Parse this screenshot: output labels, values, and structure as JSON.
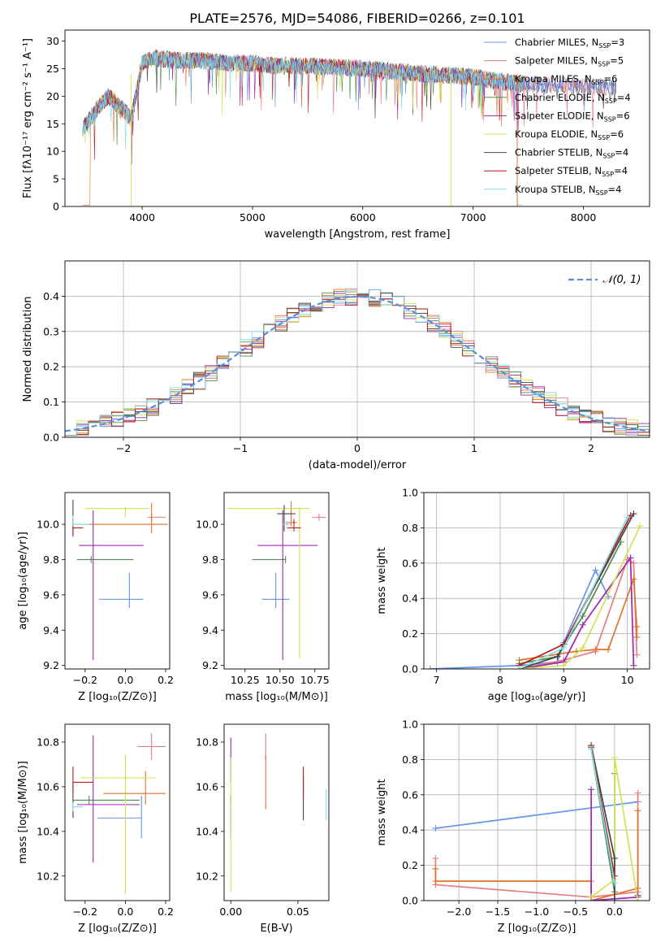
{
  "figure": {
    "title": "PLATE=2576, MJD=54086, FIBERID=0266, z=0.101"
  },
  "models": [
    {
      "label": "Chabrier MILES, N",
      "sub": "SSP",
      "tail": "=3",
      "color": "#6495ed"
    },
    {
      "label": "Salpeter MILES, N",
      "sub": "SSP",
      "tail": "=5",
      "color": "#e97c80"
    },
    {
      "label": "Kroupa MILES, N",
      "sub": "SSP",
      "tail": "=6",
      "color": "#e07328"
    },
    {
      "label": "Chabrier ELODIE, N",
      "sub": "SSP",
      "tail": "=4",
      "color": "#4f8a4f"
    },
    {
      "label": "Salpeter ELODIE, N",
      "sub": "SSP",
      "tail": "=6",
      "color": "#9c27b0"
    },
    {
      "label": "Kroupa ELODIE, N",
      "sub": "SSP",
      "tail": "=6",
      "color": "#d4e157"
    },
    {
      "label": "Chabrier STELIB, N",
      "sub": "SSP",
      "tail": "=4",
      "color": "#444444"
    },
    {
      "label": "Salpeter STELIB, N",
      "sub": "SSP",
      "tail": "=4",
      "color": "#b71c1c"
    },
    {
      "label": "Kroupa STELIB, N",
      "sub": "SSP",
      "tail": "=4",
      "color": "#80deea"
    }
  ],
  "chart_data": [
    {
      "id": "spectrum",
      "type": "line",
      "xlabel": "wavelength [Angstrom, rest frame]",
      "ylabel": "Flux [fλ10⁻¹⁷ erg cm⁻² s⁻¹ A⁻¹]",
      "xlim": [
        3300,
        8600
      ],
      "ylim": [
        0,
        32
      ],
      "xticks": [
        4000,
        5000,
        6000,
        7000,
        8000
      ],
      "yticks": [
        0,
        5,
        10,
        15,
        20,
        25,
        30
      ],
      "spectrum_shape_x": [
        3450,
        3500,
        3600,
        3700,
        3800,
        3900,
        4000,
        4100,
        4300,
        4500,
        4800,
        5000,
        5200,
        5500,
        6000,
        6300,
        6600,
        7000,
        7300,
        7600,
        8000,
        8300
      ],
      "spectrum_shape_y": [
        14,
        15,
        18,
        20,
        18,
        16,
        26,
        27,
        26.5,
        26.5,
        26,
        26,
        25.5,
        25.5,
        25,
        24.5,
        24,
        23.5,
        22.5,
        22,
        22,
        21.5
      ],
      "legend": "upper-right"
    },
    {
      "id": "residuals",
      "type": "histogram",
      "xlabel": "(data-model)/error",
      "ylabel": "Normed distribution",
      "xlim": [
        -2.5,
        2.5
      ],
      "ylim": [
        0,
        0.5
      ],
      "xticks": [
        -2,
        -1,
        0,
        1,
        2
      ],
      "yticks": [
        0.0,
        0.1,
        0.2,
        0.3,
        0.4
      ],
      "gaussian_label": "𝒩(0, 1)",
      "gaussian_color": "#5b8fd6",
      "grid": true,
      "legend": "upper-right"
    },
    {
      "id": "age-vs-Z",
      "type": "errorbar",
      "xlabel": "Z [log₁₀(Z/Z⊙)]",
      "ylabel": "age  [log₁₀(age/yr)]",
      "xlim": [
        -0.3,
        0.22
      ],
      "ylim": [
        9.18,
        10.18
      ],
      "xticks": [
        -0.2,
        0.0,
        0.2
      ],
      "yticks": [
        9.2,
        9.4,
        9.6,
        9.8,
        10.0
      ],
      "points": [
        {
          "x": 0.02,
          "xerr": [
            0.15,
            0.07
          ],
          "y": 9.575,
          "yerr": [
            0.05,
            0.15
          ],
          "model": 0
        },
        {
          "x": 0.13,
          "xerr": [
            0.02,
            0.07
          ],
          "y": 10.04,
          "yerr": [
            0.02,
            0.02
          ],
          "model": 1
        },
        {
          "x": 0.13,
          "xerr": [
            0.38,
            0.08
          ],
          "y": 10.0,
          "yerr": [
            0.05,
            0.12
          ],
          "model": 2
        },
        {
          "x": -0.17,
          "xerr": [
            0.07,
            0.21
          ],
          "y": 9.8,
          "yerr": [
            0.02,
            0.02
          ],
          "model": 3
        },
        {
          "x": -0.16,
          "xerr": [
            0.07,
            0.25
          ],
          "y": 9.88,
          "yerr": [
            0.65,
            0.2
          ],
          "model": 4
        },
        {
          "x": 0.0,
          "xerr": [
            0.2,
            0.12
          ],
          "y": 10.09,
          "yerr": [
            0.05,
            0.01
          ],
          "model": 5
        },
        {
          "x": -0.26,
          "xerr": [
            0.0,
            0.0
          ],
          "y": 10.06,
          "yerr": [
            0.12,
            0.08
          ],
          "model": 6
        },
        {
          "x": -0.26,
          "xerr": [
            0.0,
            0.05
          ],
          "y": 9.98,
          "yerr": [
            0.05,
            0.05
          ],
          "model": 7
        },
        {
          "x": -0.26,
          "xerr": [
            0.0,
            0.08
          ],
          "y": 10.0,
          "yerr": [
            0.01,
            0.05
          ],
          "model": 8
        }
      ]
    },
    {
      "id": "age-vs-mass",
      "type": "errorbar",
      "xlabel": "mass [log₁₀(M/M⊙)]",
      "ylabel": "",
      "xlim": [
        10.1,
        10.85
      ],
      "ylim": [
        9.18,
        10.18
      ],
      "xticks": [
        10.25,
        10.5,
        10.75
      ],
      "yticks": [
        9.2,
        9.4,
        9.6,
        9.8,
        10.0
      ],
      "points": [
        {
          "x": 10.47,
          "xerr": [
            0.1,
            0.1
          ],
          "y": 9.575,
          "yerr": [
            0.05,
            0.15
          ],
          "model": 0
        },
        {
          "x": 10.78,
          "xerr": [
            0.05,
            0.05
          ],
          "y": 10.04,
          "yerr": [
            0.02,
            0.02
          ],
          "model": 1
        },
        {
          "x": 10.58,
          "xerr": [
            0.04,
            0.04
          ],
          "y": 10.01,
          "yerr": [
            0.02,
            0.12
          ],
          "model": 2
        },
        {
          "x": 10.54,
          "xerr": [
            0.24,
            0.0
          ],
          "y": 9.8,
          "yerr": [
            0.02,
            0.02
          ],
          "model": 3
        },
        {
          "x": 10.52,
          "xerr": [
            0.18,
            0.25
          ],
          "y": 9.88,
          "yerr": [
            0.65,
            0.2
          ],
          "model": 4
        },
        {
          "x": 10.64,
          "xerr": [
            0.52,
            0.07
          ],
          "y": 10.09,
          "yerr": [
            0.85,
            0.01
          ],
          "model": 5
        },
        {
          "x": 10.53,
          "xerr": [
            0.05,
            0.08
          ],
          "y": 10.06,
          "yerr": [
            0.1,
            0.05
          ],
          "model": 6
        },
        {
          "x": 10.6,
          "xerr": [
            0.05,
            0.05
          ],
          "y": 9.98,
          "yerr": [
            0.02,
            0.05
          ],
          "model": 7
        },
        {
          "x": 10.55,
          "xerr": [
            0.03,
            0.03
          ],
          "y": 10.0,
          "yerr": [
            0.01,
            0.02
          ],
          "model": 8
        }
      ]
    },
    {
      "id": "weight-vs-age",
      "type": "line",
      "xlabel": "age  [log₁₀(age/yr)]",
      "ylabel": "mass weight",
      "xlim": [
        6.8,
        10.35
      ],
      "ylim": [
        0.0,
        1.0
      ],
      "xticks": [
        7,
        8,
        9,
        10
      ],
      "yticks": [
        0.0,
        0.2,
        0.4,
        0.6,
        0.8,
        1.0
      ],
      "grid": true,
      "series": [
        {
          "model": 0,
          "x": [
            6.9,
            8.3,
            8.9,
            9.0,
            9.5,
            9.7
          ],
          "y": [
            0.0,
            0.02,
            0.04,
            0.15,
            0.56,
            0.41
          ]
        },
        {
          "model": 1,
          "x": [
            8.3,
            9.0,
            9.5,
            10.0,
            10.1,
            10.15
          ],
          "y": [
            0.0,
            0.05,
            0.1,
            0.62,
            0.6,
            0.08
          ]
        },
        {
          "model": 2,
          "x": [
            8.3,
            9.2,
            9.5,
            9.7,
            10.1,
            10.15,
            10.15
          ],
          "y": [
            0.05,
            0.1,
            0.11,
            0.11,
            0.51,
            0.24,
            0.18
          ]
        },
        {
          "model": 3,
          "x": [
            8.3,
            8.9,
            9.3,
            9.9
          ],
          "y": [
            0.03,
            0.07,
            0.3,
            0.72
          ]
        },
        {
          "model": 4,
          "x": [
            8.3,
            9.0,
            9.3,
            10.05,
            10.1
          ],
          "y": [
            0.0,
            0.04,
            0.25,
            0.63,
            0.02
          ]
        },
        {
          "model": 5,
          "x": [
            8.3,
            9.0,
            9.3,
            10.2
          ],
          "y": [
            0.0,
            0.02,
            0.12,
            0.81
          ]
        },
        {
          "model": 6,
          "x": [
            8.3,
            8.9,
            9.0,
            10.1
          ],
          "y": [
            0.0,
            0.07,
            0.14,
            0.88
          ]
        },
        {
          "model": 7,
          "x": [
            8.3,
            9.0,
            10.05
          ],
          "y": [
            0.02,
            0.14,
            0.87
          ]
        },
        {
          "model": 8,
          "x": [
            8.3,
            9.0,
            10.0
          ],
          "y": [
            0.0,
            0.12,
            0.86
          ]
        }
      ]
    },
    {
      "id": "mass-vs-Z",
      "type": "errorbar",
      "xlabel": "Z [log₁₀(Z/Z⊙)]",
      "ylabel": "mass [log₁₀(M/M⊙)]",
      "xlim": [
        -0.3,
        0.22
      ],
      "ylim": [
        10.09,
        10.88
      ],
      "xticks": [
        -0.2,
        0.0,
        0.2
      ],
      "yticks": [
        10.2,
        10.4,
        10.6,
        10.8
      ],
      "points": [
        {
          "x": 0.08,
          "xerr": [
            0.22,
            0.0
          ],
          "y": 10.46,
          "yerr": [
            0.09,
            0.1
          ],
          "model": 0
        },
        {
          "x": 0.13,
          "xerr": [
            0.07,
            0.07
          ],
          "y": 10.78,
          "yerr": [
            0.06,
            0.06
          ],
          "model": 1
        },
        {
          "x": 0.1,
          "xerr": [
            0.21,
            0.1
          ],
          "y": 10.57,
          "yerr": [
            0.05,
            0.1
          ],
          "model": 2
        },
        {
          "x": -0.18,
          "xerr": [
            0.08,
            0.25
          ],
          "y": 10.54,
          "yerr": [
            0.02,
            0.02
          ],
          "model": 3
        },
        {
          "x": -0.16,
          "xerr": [
            0.08,
            0.23
          ],
          "y": 10.52,
          "yerr": [
            0.26,
            0.31
          ],
          "model": 4
        },
        {
          "x": 0.0,
          "xerr": [
            0.22,
            0.15
          ],
          "y": 10.64,
          "yerr": [
            0.52,
            0.1
          ],
          "model": 5
        },
        {
          "x": -0.26,
          "xerr": [
            0.0,
            0.0
          ],
          "y": 10.54,
          "yerr": [
            0.08,
            0.08
          ],
          "model": 6
        },
        {
          "x": -0.26,
          "xerr": [
            0.0,
            0.1
          ],
          "y": 10.62,
          "yerr": [
            0.05,
            0.07
          ],
          "model": 7
        },
        {
          "x": -0.26,
          "xerr": [
            0.0,
            0.05
          ],
          "y": 10.51,
          "yerr": [
            0.02,
            0.02
          ],
          "model": 8
        }
      ]
    },
    {
      "id": "mass-vs-EBV",
      "type": "errorbar",
      "xlabel": "E(B-V)",
      "ylabel": "",
      "xlim": [
        -0.005,
        0.073
      ],
      "ylim": [
        10.09,
        10.88
      ],
      "xticks": [
        0.0,
        0.05
      ],
      "yticks": [
        10.2,
        10.4,
        10.6,
        10.8
      ],
      "points": [
        {
          "x": 0.0,
          "xerr": [
            0,
            0
          ],
          "y": 10.46,
          "yerr": [
            0.09,
            0.1
          ],
          "model": 0
        },
        {
          "x": 0.026,
          "xerr": [
            0,
            0
          ],
          "y": 10.78,
          "yerr": [
            0.06,
            0.06
          ],
          "model": 1
        },
        {
          "x": 0.026,
          "xerr": [
            0,
            0
          ],
          "y": 10.62,
          "yerr": [
            0.12,
            0.12
          ],
          "model": 2
        },
        {
          "x": 0.0,
          "xerr": [
            0,
            0
          ],
          "y": 10.54,
          "yerr": [
            0.02,
            0.02
          ],
          "model": 3
        },
        {
          "x": 0.0,
          "xerr": [
            0,
            0
          ],
          "y": 10.72,
          "yerr": [
            0.1,
            0.1
          ],
          "model": 4
        },
        {
          "x": 0.0,
          "xerr": [
            0,
            0
          ],
          "y": 10.43,
          "yerr": [
            0.3,
            0.3
          ],
          "model": 5
        },
        {
          "x": 0.054,
          "xerr": [
            0,
            0
          ],
          "y": 10.55,
          "yerr": [
            0.1,
            0.1
          ],
          "model": 6
        },
        {
          "x": 0.054,
          "xerr": [
            0,
            0
          ],
          "y": 10.62,
          "yerr": [
            0.07,
            0.07
          ],
          "model": 7
        },
        {
          "x": 0.071,
          "xerr": [
            0,
            0
          ],
          "y": 10.52,
          "yerr": [
            0.07,
            0.07
          ],
          "model": 8
        }
      ]
    },
    {
      "id": "weight-vs-Z",
      "type": "line",
      "xlabel": "Z [log₁₀(Z/Z⊙)]",
      "ylabel": "mass weight",
      "xlim": [
        -2.45,
        0.45
      ],
      "ylim": [
        0.0,
        1.0
      ],
      "xticks": [
        -2.0,
        -1.5,
        -1.0,
        -0.5,
        0.0
      ],
      "yticks": [
        0.0,
        0.2,
        0.4,
        0.6,
        0.8,
        1.0
      ],
      "grid": true,
      "series": [
        {
          "model": 0,
          "x": [
            -2.3,
            0.3
          ],
          "y": [
            0.41,
            0.56
          ]
        },
        {
          "model": 1,
          "x": [
            -2.3,
            -2.3,
            -0.3,
            0.3,
            0.3
          ],
          "y": [
            0.24,
            0.09,
            0.02,
            0.05,
            0.61
          ]
        },
        {
          "model": 2,
          "x": [
            -2.3,
            -2.3,
            -0.3,
            -0.3,
            0.3,
            0.3
          ],
          "y": [
            0.18,
            0.11,
            0.11,
            0.0,
            0.07,
            0.51
          ]
        },
        {
          "model": 3,
          "x": [
            -0.3,
            0.0,
            0.0
          ],
          "y": [
            0.86,
            0.05,
            0.72
          ]
        },
        {
          "model": 4,
          "x": [
            -0.3,
            -0.3,
            0.3,
            0.3
          ],
          "y": [
            0.63,
            0.0,
            0.02,
            0.03
          ]
        },
        {
          "model": 5,
          "x": [
            -0.3,
            0.0,
            0.0,
            0.3
          ],
          "y": [
            0.02,
            0.12,
            0.81,
            0.0
          ]
        },
        {
          "model": 6,
          "x": [
            -0.3,
            0.0,
            0.0
          ],
          "y": [
            0.88,
            0.24,
            0.0
          ]
        },
        {
          "model": 7,
          "x": [
            -0.3,
            0.0
          ],
          "y": [
            0.87,
            0.14
          ]
        },
        {
          "model": 8,
          "x": [
            -0.3,
            0.0
          ],
          "y": [
            0.86,
            0.1
          ]
        }
      ]
    }
  ]
}
